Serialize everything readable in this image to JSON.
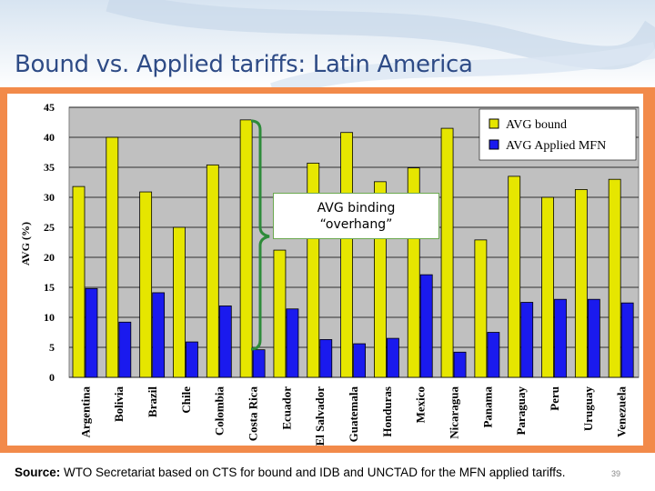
{
  "slide": {
    "title": "Bound vs. Applied tariffs: Latin America",
    "callout_line1": "AVG binding",
    "callout_line2": "“overhang”",
    "source_label": "Source:",
    "source_text": " WTO Secretariat based on CTS for bound and  IDB and UNCTAD for the MFN applied tariffs.",
    "page_number": "39"
  },
  "colors": {
    "bound": "#e6e600",
    "applied": "#1a1aee",
    "plot_bg": "#c0c0c0",
    "frame": "#f28a4a",
    "brace": "#2e8b3a"
  },
  "chart_data": {
    "type": "bar",
    "title": "",
    "xlabel": "",
    "ylabel": "AVG (%)",
    "ylim": [
      0,
      45
    ],
    "yticks": [
      0,
      5,
      10,
      15,
      20,
      25,
      30,
      35,
      40,
      45
    ],
    "grid": true,
    "legend_position": "top-right",
    "categories": [
      "Argentina",
      "Bolivia",
      "Brazil",
      "Chile",
      "Colombia",
      "Costa Rica",
      "Ecuador",
      "El Salvador",
      "Guatemala",
      "Honduras",
      "Mexico",
      "Nicaragua",
      "Panama",
      "Paraguay",
      "Peru",
      "Uruguay",
      "Venezuela"
    ],
    "series": [
      {
        "name": "AVG bound",
        "values": [
          31.8,
          40.0,
          30.9,
          25.0,
          35.4,
          42.9,
          21.2,
          35.7,
          40.8,
          32.6,
          34.9,
          41.5,
          22.9,
          33.5,
          30.0,
          31.3,
          33.0
        ]
      },
      {
        "name": "AVG Applied MFN",
        "values": [
          14.8,
          9.2,
          14.1,
          5.9,
          11.9,
          4.6,
          11.4,
          6.3,
          5.6,
          6.5,
          17.1,
          4.2,
          7.5,
          12.5,
          13.0,
          13.0,
          12.4
        ]
      }
    ]
  }
}
